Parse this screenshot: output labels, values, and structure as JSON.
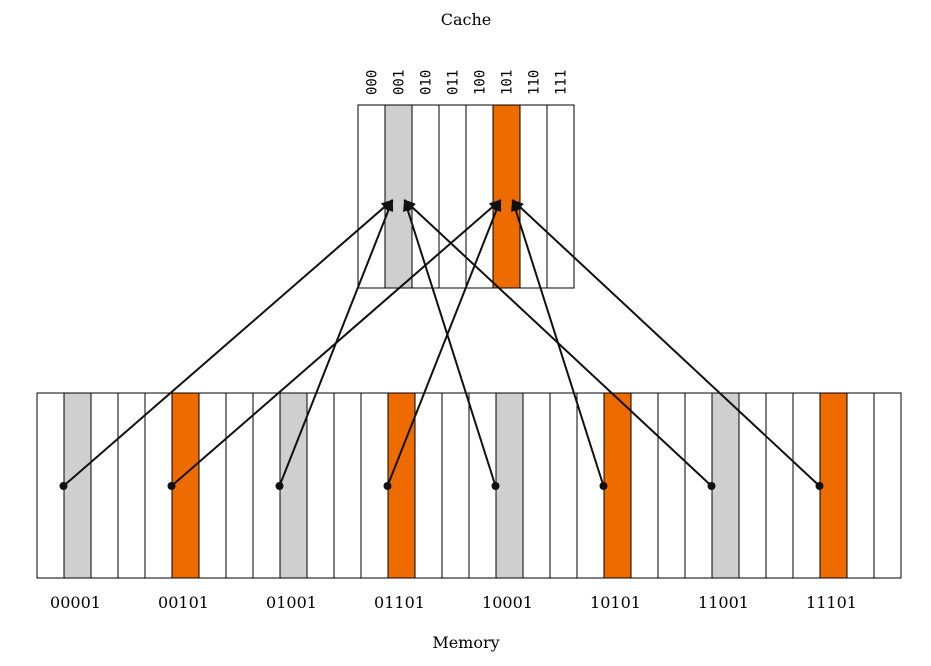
{
  "diagram": {
    "cache_title": "Cache",
    "memory_title": "Memory",
    "colors": {
      "gray": "#cfcfcf",
      "orange": "#ee6b00",
      "stroke": "#000000",
      "arrow": "#111111"
    },
    "cache": {
      "index_labels": [
        "000",
        "001",
        "010",
        "011",
        "100",
        "101",
        "110",
        "111"
      ],
      "highlight": {
        "1": "gray",
        "5": "orange"
      }
    },
    "memory": {
      "block_count": 32,
      "highlight": {
        "1": "gray",
        "5": "orange",
        "9": "gray",
        "13": "orange",
        "17": "gray",
        "21": "orange",
        "25": "gray",
        "29": "orange"
      },
      "address_labels": [
        "00001",
        "00101",
        "01001",
        "01101",
        "10001",
        "10101",
        "11001",
        "11101"
      ],
      "mappings": [
        {
          "block": 1,
          "cache_line": 1
        },
        {
          "block": 5,
          "cache_line": 5
        },
        {
          "block": 9,
          "cache_line": 1
        },
        {
          "block": 13,
          "cache_line": 5
        },
        {
          "block": 17,
          "cache_line": 1
        },
        {
          "block": 21,
          "cache_line": 5
        },
        {
          "block": 25,
          "cache_line": 1
        },
        {
          "block": 29,
          "cache_line": 5
        }
      ]
    }
  }
}
